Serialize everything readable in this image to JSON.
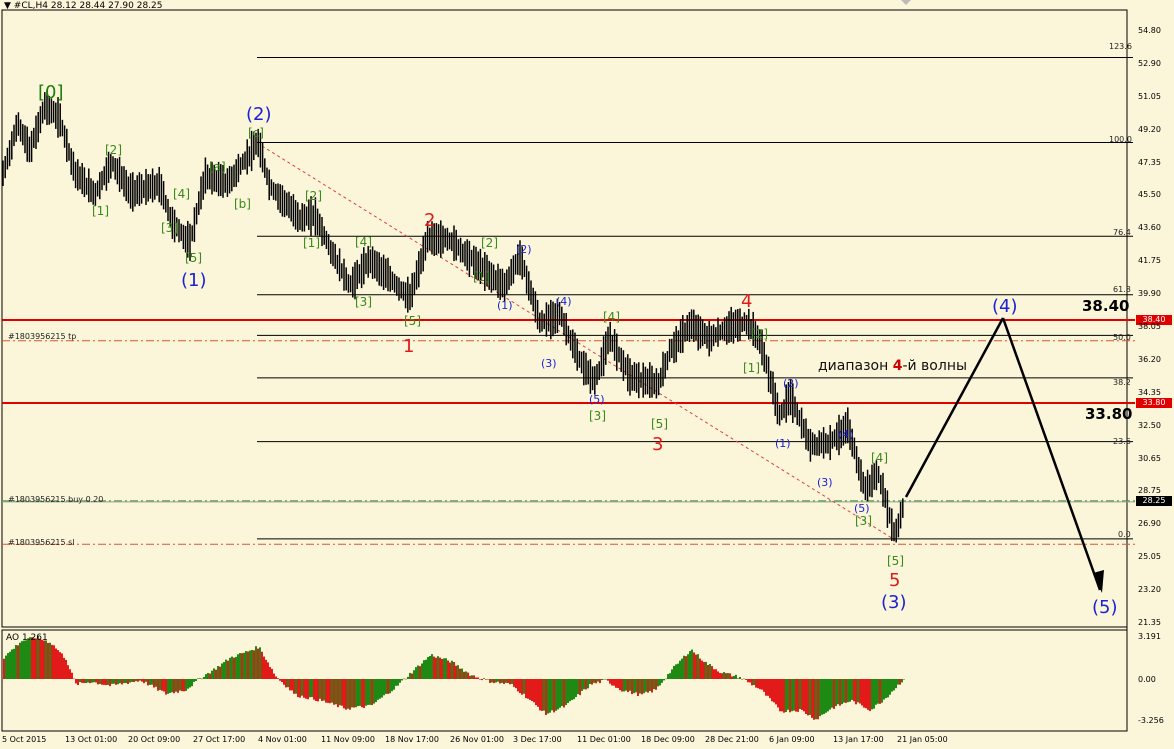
{
  "header": {
    "symbol_line": "#CL,H4  28.12 28.44 27.90 28.25",
    "menu_icon": "triangle-down-icon"
  },
  "indicator": {
    "label": "AO 1.261"
  },
  "fib_levels": [
    {
      "label": "123.6",
      "price": 53.3
    },
    {
      "label": "100.0",
      "price": 48.5
    },
    {
      "label": "76.4",
      "price": 43.2
    },
    {
      "label": "61.8",
      "price": 39.9
    },
    {
      "label": "50.0",
      "price": 37.6
    },
    {
      "label": "38.2",
      "price": 35.2
    },
    {
      "label": "23.6",
      "price": 31.6
    },
    {
      "label": "0.0",
      "price": 26.1
    }
  ],
  "order_lines": [
    {
      "label": "#1803956215 tp",
      "price": 37.3
    },
    {
      "label": "#1803956215 buy 0.20",
      "price": 28.25
    },
    {
      "label": "#1803956215 sl",
      "price": 25.8
    }
  ],
  "levels": [
    {
      "label": "38.40",
      "price": 38.4
    },
    {
      "label": "33.80",
      "price": 33.8
    }
  ],
  "current_price": "28.25",
  "range_note": {
    "before": "диапазон ",
    "highlight": "4",
    "after": "-й волны"
  },
  "price_axis": [
    "54.80",
    "52.90",
    "51.05",
    "49.20",
    "47.35",
    "45.50",
    "43.60",
    "41.75",
    "39.90",
    "38.05",
    "36.20",
    "34.35",
    "32.50",
    "30.65",
    "28.75",
    "26.90",
    "25.05",
    "23.20",
    "21.35"
  ],
  "ao_axis": [
    "3.191",
    "0.00",
    "-3.256"
  ],
  "time_axis": [
    "5 Oct 2015",
    "13 Oct 01:00",
    "20 Oct 09:00",
    "27 Oct 17:00",
    "4 Nov 01:00",
    "11 Nov 09:00",
    "18 Nov 17:00",
    "26 Nov 01:00",
    "3 Dec 17:00",
    "11 Dec 01:00",
    "18 Dec 09:00",
    "28 Dec 21:00",
    "6 Jan 09:00",
    "13 Jan 17:00",
    "21 Jan 05:00"
  ],
  "wave_labels": {
    "g0": "[0]",
    "g_c": "[c]",
    "g_a": "[a]",
    "g_b": "[b]",
    "g2a": "[2]",
    "g1a": "[1]",
    "g4a": "[4]",
    "g3a": "[3]",
    "g5a": "[5]",
    "g2b": "[2]",
    "g1b": "[1]",
    "g4b": "[4]",
    "g3b": "[3]",
    "g5b": "[5]",
    "g2c": "[2]",
    "g1c": "[1]",
    "g3c": "[3]",
    "g4c": "[4]",
    "g5c": "[5]",
    "g2d": "[2]",
    "g1d": "[1]",
    "g4d": "[4]",
    "g3d": "[3]",
    "g5d": "[5]",
    "b1": "(1)",
    "b2": "(2)",
    "b3": "(3)",
    "b4": "(4)",
    "b5": "(5)",
    "s2": "(2)",
    "s1": "(1)",
    "s4": "(4)",
    "s3": "(3)",
    "s5": "(5)",
    "t2": "(2)",
    "t1": "(1)",
    "t4": "(4)",
    "t3": "(3)",
    "t5": "(5)",
    "r1": "1",
    "r2": "2",
    "r3": "3",
    "r4": "4",
    "r5": "5"
  },
  "colors": {
    "background": "#fbf6d9",
    "bull": "#1e8a14",
    "bear": "#e21a1a",
    "level": "#e00000",
    "wave_blue": "#1c22d6"
  }
}
